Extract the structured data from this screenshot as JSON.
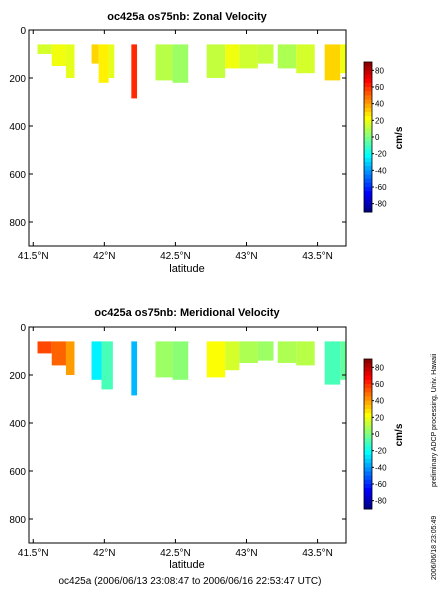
{
  "chart_data": [
    {
      "type": "heatmap",
      "title": "oc425a os75nb: Zonal Velocity",
      "xlabel": "latitude",
      "ylabel": "",
      "xlim": [
        41.47,
        43.7
      ],
      "ylim": [
        900,
        0
      ],
      "y_inverted": true,
      "x_tick_values": [
        41.5,
        42.0,
        42.5,
        43.0,
        43.5
      ],
      "x_tick_labels": [
        "41.5°N",
        "42°N",
        "42.5°N",
        "43°N",
        "43.5°N"
      ],
      "y_tick_values": [
        0,
        200,
        400,
        600,
        800
      ],
      "y_tick_labels": [
        "0",
        "200",
        "400",
        "600",
        "800"
      ],
      "colorbar": {
        "label": "cm/s",
        "range": [
          -90,
          90
        ],
        "ticks": [
          80,
          60,
          40,
          20,
          0,
          -20,
          -40,
          -60,
          -80
        ],
        "colormap": "jet"
      },
      "segments": [
        {
          "lat": [
            41.53,
            41.63
          ],
          "depth": [
            60,
            100
          ],
          "value": 15
        },
        {
          "lat": [
            41.63,
            41.73
          ],
          "depth": [
            60,
            150
          ],
          "value": 20
        },
        {
          "lat": [
            41.73,
            41.79
          ],
          "depth": [
            60,
            200
          ],
          "value": 18
        },
        {
          "lat": [
            41.91,
            41.96
          ],
          "depth": [
            60,
            140
          ],
          "value": 30
        },
        {
          "lat": [
            41.96,
            42.03
          ],
          "depth": [
            60,
            220
          ],
          "value": 25
        },
        {
          "lat": [
            42.03,
            42.07
          ],
          "depth": [
            60,
            200
          ],
          "value": 18
        },
        {
          "lat": [
            42.19,
            42.23
          ],
          "depth": [
            60,
            285
          ],
          "value": 60
        },
        {
          "lat": [
            42.36,
            42.48
          ],
          "depth": [
            60,
            210
          ],
          "value": 10
        },
        {
          "lat": [
            42.48,
            42.59
          ],
          "depth": [
            60,
            220
          ],
          "value": 5
        },
        {
          "lat": [
            42.72,
            42.85
          ],
          "depth": [
            60,
            200
          ],
          "value": 12
        },
        {
          "lat": [
            42.85,
            42.95
          ],
          "depth": [
            60,
            160
          ],
          "value": 20
        },
        {
          "lat": [
            42.95,
            43.08
          ],
          "depth": [
            60,
            160
          ],
          "value": 14
        },
        {
          "lat": [
            43.08,
            43.19
          ],
          "depth": [
            60,
            140
          ],
          "value": 12
        },
        {
          "lat": [
            43.22,
            43.35
          ],
          "depth": [
            60,
            160
          ],
          "value": 8
        },
        {
          "lat": [
            43.35,
            43.48
          ],
          "depth": [
            60,
            180
          ],
          "value": 15
        },
        {
          "lat": [
            43.55,
            43.66
          ],
          "depth": [
            60,
            210
          ],
          "value": 30
        },
        {
          "lat": [
            43.66,
            43.7
          ],
          "depth": [
            60,
            180
          ],
          "value": 20
        }
      ]
    },
    {
      "type": "heatmap",
      "title": "oc425a os75nb: Meridional Velocity",
      "xlabel": "latitude",
      "ylabel": "",
      "xlim": [
        41.47,
        43.7
      ],
      "ylim": [
        900,
        0
      ],
      "y_inverted": true,
      "x_tick_values": [
        41.5,
        42.0,
        42.5,
        43.0,
        43.5
      ],
      "x_tick_labels": [
        "41.5°N",
        "42°N",
        "42.5°N",
        "43°N",
        "43.5°N"
      ],
      "y_tick_values": [
        0,
        200,
        400,
        600,
        800
      ],
      "y_tick_labels": [
        "0",
        "200",
        "400",
        "600",
        "800"
      ],
      "colorbar": {
        "label": "cm/s",
        "range": [
          -90,
          90
        ],
        "ticks": [
          80,
          60,
          40,
          20,
          0,
          -20,
          -40,
          -60,
          -80
        ],
        "colormap": "jet"
      },
      "segments": [
        {
          "lat": [
            41.53,
            41.63
          ],
          "depth": [
            60,
            110
          ],
          "value": 55
        },
        {
          "lat": [
            41.63,
            41.73
          ],
          "depth": [
            60,
            160
          ],
          "value": 50
        },
        {
          "lat": [
            41.73,
            41.79
          ],
          "depth": [
            60,
            200
          ],
          "value": 40
        },
        {
          "lat": [
            41.91,
            41.98
          ],
          "depth": [
            60,
            220
          ],
          "value": -25
        },
        {
          "lat": [
            41.98,
            42.06
          ],
          "depth": [
            60,
            260
          ],
          "value": -10
        },
        {
          "lat": [
            42.19,
            42.23
          ],
          "depth": [
            60,
            285
          ],
          "value": -35
        },
        {
          "lat": [
            42.36,
            42.48
          ],
          "depth": [
            60,
            210
          ],
          "value": 5
        },
        {
          "lat": [
            42.48,
            42.59
          ],
          "depth": [
            60,
            220
          ],
          "value": 2
        },
        {
          "lat": [
            42.72,
            42.85
          ],
          "depth": [
            60,
            210
          ],
          "value": 22
        },
        {
          "lat": [
            42.85,
            42.95
          ],
          "depth": [
            60,
            180
          ],
          "value": 15
        },
        {
          "lat": [
            42.95,
            43.08
          ],
          "depth": [
            60,
            150
          ],
          "value": 8
        },
        {
          "lat": [
            43.08,
            43.19
          ],
          "depth": [
            60,
            140
          ],
          "value": 5
        },
        {
          "lat": [
            43.22,
            43.35
          ],
          "depth": [
            60,
            150
          ],
          "value": 8
        },
        {
          "lat": [
            43.35,
            43.48
          ],
          "depth": [
            60,
            160
          ],
          "value": 10
        },
        {
          "lat": [
            43.55,
            43.66
          ],
          "depth": [
            60,
            240
          ],
          "value": -10
        },
        {
          "lat": [
            43.66,
            43.7
          ],
          "depth": [
            60,
            220
          ],
          "value": -5
        }
      ]
    }
  ],
  "side_text": {
    "credit": "preliminary ADCP processing,   Univ. Hawaii",
    "timestamp": "2006/06/18 23:05:49"
  },
  "footer": {
    "caption": "oc425a (2006/06/13 23:08:47 to 2006/06/16 22:53:47 UTC)"
  },
  "colors": {
    "axis": "#000000",
    "background": "#ffffff"
  }
}
